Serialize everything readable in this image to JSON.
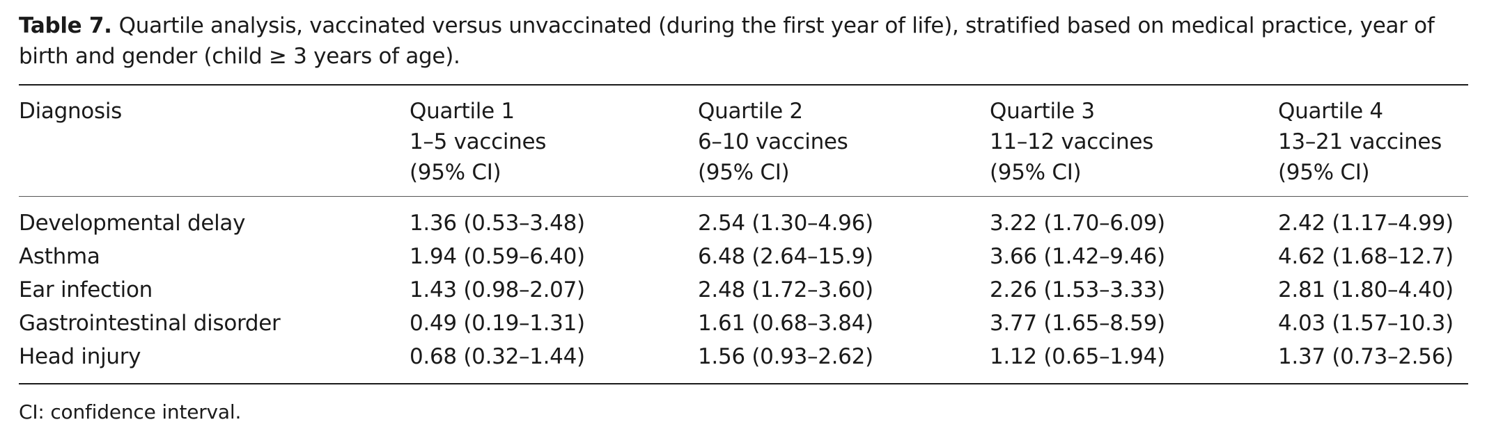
{
  "caption": {
    "label": "Table 7.",
    "text": "Quartile analysis, vaccinated versus unvaccinated (during the first year of life), stratified based on medical practice, year of birth and gender (child ≥ 3 years of age)."
  },
  "table": {
    "columns": [
      {
        "line1": "Diagnosis",
        "line2": "",
        "line3": ""
      },
      {
        "line1": "Quartile 1",
        "line2": "1–5 vaccines",
        "line3": "(95% CI)"
      },
      {
        "line1": "Quartile 2",
        "line2": "6–10 vaccines",
        "line3": "(95% CI)"
      },
      {
        "line1": "Quartile 3",
        "line2": "11–12 vaccines",
        "line3": "(95% CI)"
      },
      {
        "line1": "Quartile 4",
        "line2": "13–21 vaccines",
        "line3": "(95% CI)"
      }
    ],
    "rows": [
      [
        "Developmental delay",
        "1.36 (0.53–3.48)",
        "2.54 (1.30–4.96)",
        "3.22 (1.70–6.09)",
        "2.42 (1.17–4.99)"
      ],
      [
        "Asthma",
        "1.94 (0.59–6.40)",
        "6.48 (2.64–15.9)",
        "3.66 (1.42–9.46)",
        "4.62 (1.68–12.7)"
      ],
      [
        "Ear infection",
        "1.43 (0.98–2.07)",
        "2.48 (1.72–3.60)",
        "2.26 (1.53–3.33)",
        "2.81 (1.80–4.40)"
      ],
      [
        "Gastrointestinal disorder",
        "0.49 (0.19–1.31)",
        "1.61 (0.68–3.84)",
        "3.77 (1.65–8.59)",
        "4.03 (1.57–10.3)"
      ],
      [
        "Head injury",
        "0.68 (0.32–1.44)",
        "1.56 (0.93–2.62)",
        "1.12 (0.65–1.94)",
        "1.37 (0.73–2.56)"
      ]
    ]
  },
  "footnote": "CI: confidence interval."
}
